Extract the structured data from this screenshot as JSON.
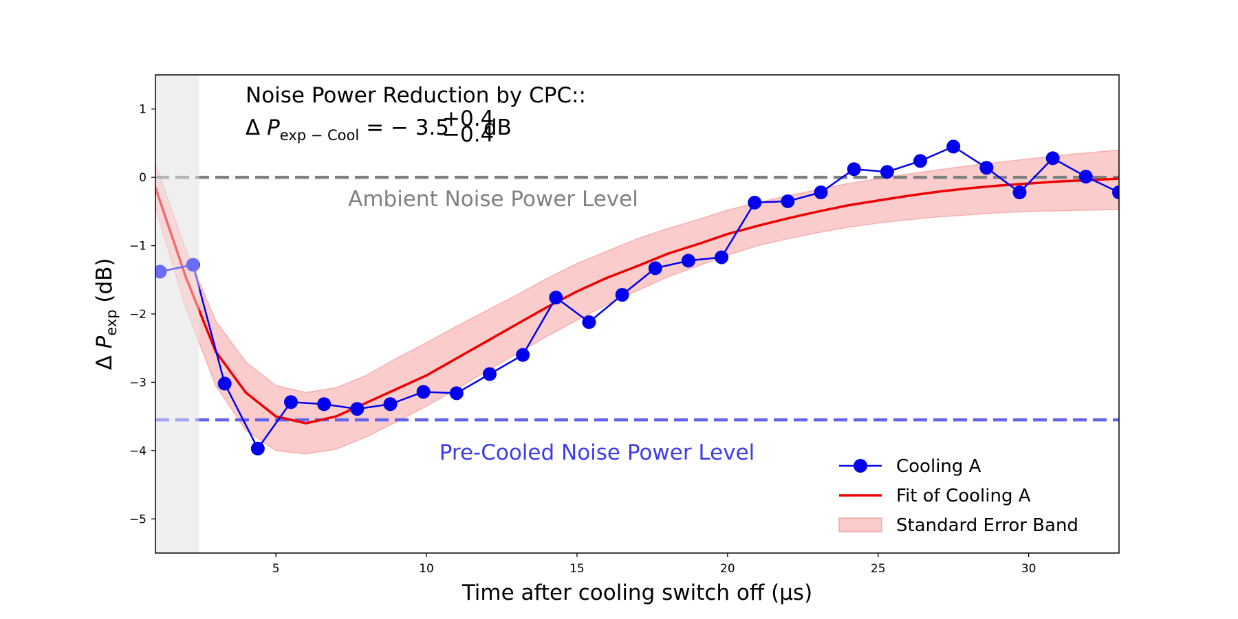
{
  "chart_data": {
    "type": "line",
    "title": "",
    "xlabel": "Time after cooling switch off (µs)",
    "ylabel_parts": {
      "prefix": "Δ ",
      "symbol": "P",
      "subscript": "exp",
      "suffix": " (dB)"
    },
    "xlim": [
      1.0,
      33.0
    ],
    "ylim": [
      -5.5,
      1.5
    ],
    "xticks": [
      5,
      10,
      15,
      20,
      25,
      30
    ],
    "yticks": [
      -5,
      -4,
      -3,
      -2,
      -1,
      0,
      1
    ],
    "grid": false,
    "legend_position": "lower-right",
    "shaded_region": {
      "x0": 1.0,
      "x1": 2.45,
      "color": "#e3e3e3"
    },
    "annotation": {
      "line1": "Noise Power Reduction by CPC::",
      "line2": {
        "delta": "Δ",
        "symbol": "P",
        "subscript": "exp − Cool",
        "equals": "= − 3.5",
        "sup": "+0.4",
        "sub": "−0.4",
        "unit": "dB"
      }
    },
    "reference_lines": [
      {
        "label": "Ambient Noise Power Level",
        "y": 0.0,
        "color": "#808080"
      },
      {
        "label": "Pre-Cooled Noise Power Level",
        "y": -3.55,
        "color": "#6363ee"
      }
    ],
    "series": [
      {
        "name": "Cooling A",
        "color": "#0000ee",
        "faded_before_x": 2.45,
        "x": [
          1.15,
          2.25,
          3.3,
          4.4,
          5.5,
          6.6,
          7.7,
          8.8,
          9.9,
          11.0,
          12.1,
          13.2,
          14.3,
          15.4,
          16.5,
          17.6,
          18.7,
          19.8,
          20.9,
          22.0,
          23.1,
          24.2,
          25.3,
          26.4,
          27.5,
          28.6,
          29.7,
          30.8,
          31.9,
          33.0
        ],
        "y": [
          -1.38,
          -1.28,
          -3.02,
          -3.97,
          -3.29,
          -3.32,
          -3.39,
          -3.32,
          -3.14,
          -3.16,
          -2.88,
          -2.6,
          -1.76,
          -2.12,
          -1.72,
          -1.33,
          -1.22,
          -1.17,
          -0.37,
          -0.35,
          -0.22,
          0.12,
          0.08,
          0.24,
          0.45,
          0.14,
          -0.22,
          0.28,
          0.01,
          -0.22
        ]
      },
      {
        "name": "Fit of Cooling A",
        "color": "#ee0000",
        "x": [
          1.0,
          2.0,
          3.0,
          4.0,
          5.0,
          6.0,
          7.0,
          8.0,
          9.0,
          10.0,
          11.0,
          12.0,
          13.0,
          14.0,
          15.0,
          16.0,
          17.0,
          18.0,
          19.0,
          20.0,
          21.0,
          22.0,
          23.0,
          24.0,
          25.0,
          26.0,
          27.0,
          28.0,
          29.0,
          30.0,
          31.0,
          32.0,
          33.0
        ],
        "y": [
          -0.15,
          -1.45,
          -2.55,
          -3.15,
          -3.5,
          -3.6,
          -3.5,
          -3.3,
          -3.1,
          -2.9,
          -2.65,
          -2.4,
          -2.15,
          -1.9,
          -1.67,
          -1.47,
          -1.3,
          -1.12,
          -0.98,
          -0.83,
          -0.71,
          -0.6,
          -0.5,
          -0.41,
          -0.34,
          -0.27,
          -0.21,
          -0.16,
          -0.12,
          -0.09,
          -0.06,
          -0.04,
          -0.02
        ]
      }
    ],
    "error_band": {
      "name": "Standard Error Band",
      "color": "#f5a3a3",
      "x": [
        1.0,
        2.0,
        3.0,
        4.0,
        5.0,
        6.0,
        7.0,
        8.0,
        9.0,
        10.0,
        11.0,
        12.0,
        13.0,
        14.0,
        15.0,
        16.0,
        17.0,
        18.0,
        19.0,
        20.0,
        21.0,
        22.0,
        23.0,
        24.0,
        25.0,
        26.0,
        27.0,
        28.0,
        29.0,
        30.0,
        31.0,
        32.0,
        33.0
      ],
      "lower": [
        -0.45,
        -1.9,
        -3.05,
        -3.7,
        -4.0,
        -4.05,
        -3.98,
        -3.8,
        -3.58,
        -3.35,
        -3.1,
        -2.84,
        -2.58,
        -2.33,
        -2.09,
        -1.86,
        -1.66,
        -1.46,
        -1.3,
        -1.14,
        -1.0,
        -0.9,
        -0.81,
        -0.73,
        -0.67,
        -0.62,
        -0.58,
        -0.55,
        -0.52,
        -0.5,
        -0.49,
        -0.48,
        -0.47
      ],
      "upper": [
        0.2,
        -1.05,
        -2.1,
        -2.7,
        -3.05,
        -3.15,
        -3.08,
        -2.9,
        -2.65,
        -2.42,
        -2.18,
        -1.95,
        -1.72,
        -1.48,
        -1.26,
        -1.08,
        -0.9,
        -0.75,
        -0.62,
        -0.48,
        -0.37,
        -0.27,
        -0.18,
        -0.09,
        -0.02,
        0.05,
        0.11,
        0.17,
        0.22,
        0.27,
        0.32,
        0.36,
        0.4
      ]
    }
  }
}
